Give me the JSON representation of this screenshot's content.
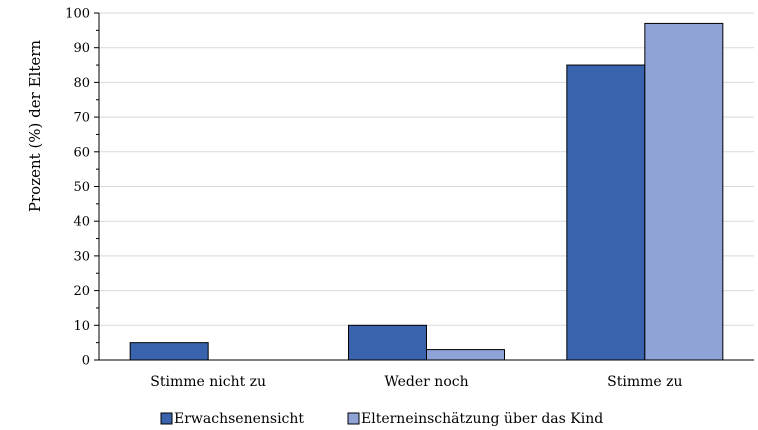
{
  "chart_data": {
    "type": "bar",
    "title": "",
    "xlabel": "",
    "ylabel": "Prozent (%) der Eltern",
    "ylim": [
      0,
      100
    ],
    "yticks": [
      0,
      10,
      20,
      30,
      40,
      50,
      60,
      70,
      80,
      90,
      100
    ],
    "grid": true,
    "legend_position": "bottom",
    "categories": [
      "Stimme nicht zu",
      "Weder noch",
      "Stimme zu"
    ],
    "series": [
      {
        "name": "Erwachsenensicht",
        "values": [
          5,
          10,
          85
        ],
        "color": "#3A63AE"
      },
      {
        "name": "Elterneinschätzung über das Kind",
        "values": [
          0,
          3,
          97
        ],
        "color": "#8FA3D7"
      }
    ]
  }
}
